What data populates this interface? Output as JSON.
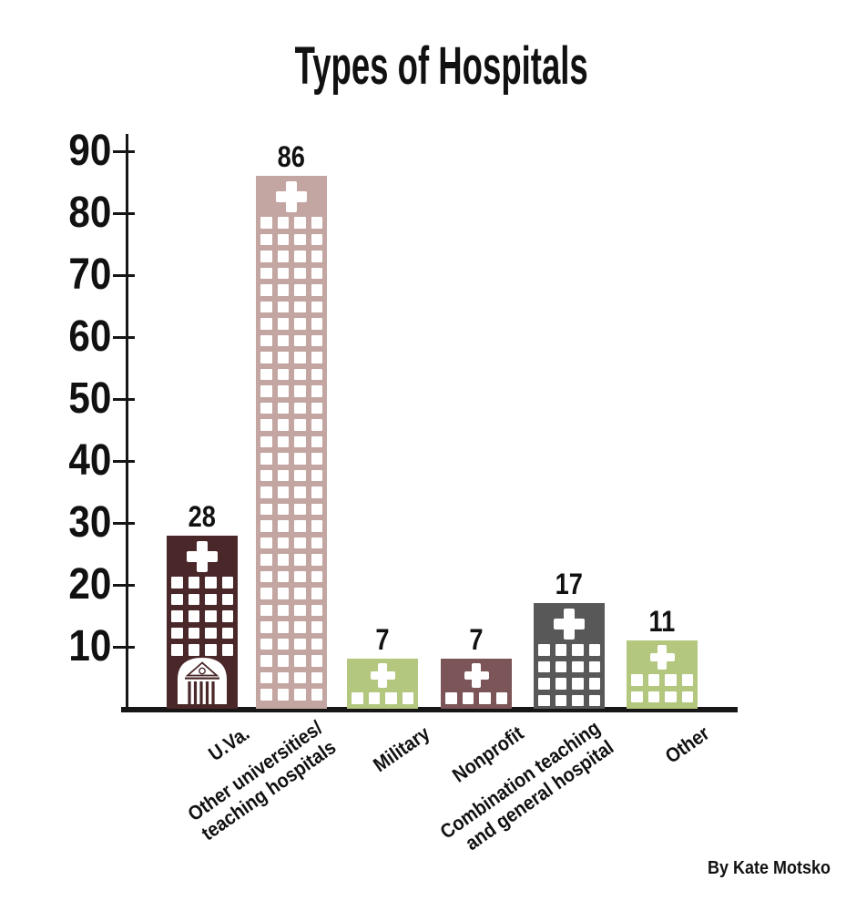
{
  "title": "Types of Hospitals",
  "credit": "By Kate Motsko",
  "chart_data": {
    "type": "bar",
    "title": "Types of Hospitals",
    "xlabel": "",
    "ylabel": "",
    "ylim": [
      0,
      90
    ],
    "y_ticks": [
      90,
      80,
      70,
      60,
      50,
      40,
      30,
      20,
      10
    ],
    "grid": false,
    "legend": "none",
    "categories": [
      "U.Va.",
      "Other universities/ teaching hospitals",
      "Military",
      "Nonprofit",
      "Combination teaching and general hospital",
      "Other"
    ],
    "values": [
      28,
      86,
      7,
      7,
      17,
      11
    ],
    "bars": [
      {
        "label_lines": [
          "U.Va."
        ],
        "value": 28,
        "color": "#4a2729",
        "icon": "rotunda-icon",
        "cross": "medical-cross-icon",
        "window_cols": 4,
        "window_rows": 5
      },
      {
        "label_lines": [
          "Other universities/",
          "teaching hospitals"
        ],
        "value": 86,
        "color": "#c3a6a1",
        "icon": null,
        "cross": "medical-cross-icon",
        "window_cols": 4,
        "window_rows": "fill"
      },
      {
        "label_lines": [
          "Military"
        ],
        "value": 7,
        "color": "#b3c87e",
        "icon": null,
        "cross": "medical-cross-icon",
        "window_cols": 4,
        "window_rows": 1
      },
      {
        "label_lines": [
          "Nonprofit"
        ],
        "value": 7,
        "color": "#7b5557",
        "icon": null,
        "cross": "medical-cross-icon",
        "window_cols": 4,
        "window_rows": 1
      },
      {
        "label_lines": [
          "Combination teaching",
          "and general hospital"
        ],
        "value": 17,
        "color": "#595859",
        "icon": null,
        "cross": "medical-cross-icon",
        "window_cols": 4,
        "window_rows": 4
      },
      {
        "label_lines": [
          "Other"
        ],
        "value": 11,
        "color": "#b3c87e",
        "icon": null,
        "cross": "medical-cross-icon",
        "window_cols": 4,
        "window_rows": 2
      }
    ],
    "axis_color": "#161616",
    "text_color": "#111111",
    "background_color": "#ffffff"
  }
}
